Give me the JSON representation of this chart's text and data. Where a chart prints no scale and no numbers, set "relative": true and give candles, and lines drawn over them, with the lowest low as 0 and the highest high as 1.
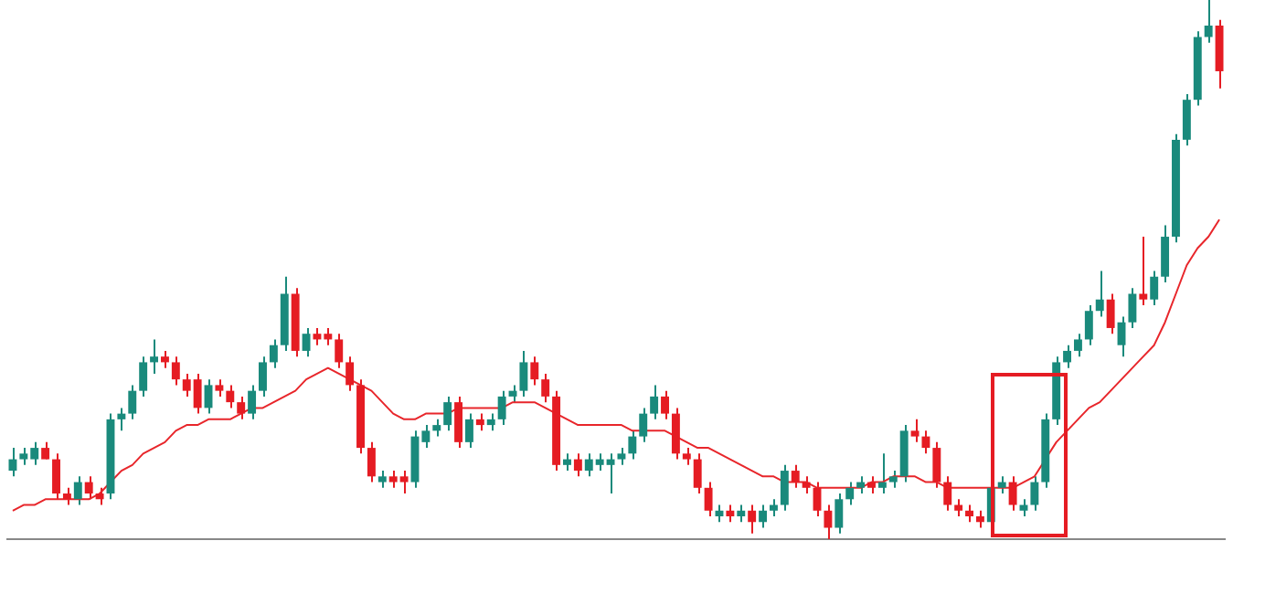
{
  "chart_data": {
    "type": "candlestick",
    "relative": true,
    "categories": [
      null,
      null,
      null,
      null,
      null,
      null,
      null,
      null,
      null,
      null,
      null,
      null,
      null,
      null,
      null,
      null,
      null,
      null,
      null,
      null,
      null,
      null,
      null,
      null,
      null,
      null,
      null,
      null,
      null,
      null,
      null,
      null,
      null,
      null,
      null,
      null,
      null,
      null,
      null,
      null,
      null,
      null,
      null,
      null,
      null,
      null,
      null,
      null,
      null,
      null,
      null,
      null,
      null,
      null,
      null,
      null,
      null,
      null,
      null,
      null,
      null,
      null,
      null,
      null,
      null,
      null,
      null,
      null,
      null,
      null,
      null,
      null,
      null,
      null,
      null,
      null,
      null,
      null,
      null,
      null,
      null,
      null,
      null,
      null,
      null,
      null,
      null,
      null,
      null,
      null,
      null,
      null,
      null,
      null,
      null,
      null,
      null,
      null,
      null,
      null,
      null,
      null,
      null,
      null,
      null,
      null,
      null,
      null,
      null,
      null,
      null,
      null
    ],
    "ohlc": [
      [
        0.12,
        0.16,
        0.11,
        0.14
      ],
      [
        0.14,
        0.16,
        0.13,
        0.15
      ],
      [
        0.14,
        0.17,
        0.13,
        0.16
      ],
      [
        0.16,
        0.17,
        0.14,
        0.14
      ],
      [
        0.14,
        0.15,
        0.07,
        0.08
      ],
      [
        0.08,
        0.09,
        0.06,
        0.07
      ],
      [
        0.07,
        0.11,
        0.06,
        0.1
      ],
      [
        0.1,
        0.11,
        0.07,
        0.08
      ],
      [
        0.08,
        0.09,
        0.06,
        0.07
      ],
      [
        0.08,
        0.22,
        0.07,
        0.21
      ],
      [
        0.21,
        0.23,
        0.19,
        0.22
      ],
      [
        0.22,
        0.27,
        0.21,
        0.26
      ],
      [
        0.26,
        0.32,
        0.25,
        0.31
      ],
      [
        0.31,
        0.35,
        0.29,
        0.32
      ],
      [
        0.32,
        0.33,
        0.3,
        0.31
      ],
      [
        0.31,
        0.32,
        0.27,
        0.28
      ],
      [
        0.28,
        0.29,
        0.25,
        0.26
      ],
      [
        0.28,
        0.29,
        0.22,
        0.23
      ],
      [
        0.23,
        0.28,
        0.22,
        0.27
      ],
      [
        0.27,
        0.28,
        0.25,
        0.26
      ],
      [
        0.26,
        0.27,
        0.23,
        0.24
      ],
      [
        0.24,
        0.25,
        0.21,
        0.22
      ],
      [
        0.22,
        0.27,
        0.21,
        0.26
      ],
      [
        0.26,
        0.32,
        0.25,
        0.31
      ],
      [
        0.31,
        0.35,
        0.3,
        0.34
      ],
      [
        0.34,
        0.46,
        0.33,
        0.43
      ],
      [
        0.43,
        0.44,
        0.32,
        0.33
      ],
      [
        0.33,
        0.37,
        0.32,
        0.36
      ],
      [
        0.36,
        0.37,
        0.34,
        0.35
      ],
      [
        0.36,
        0.37,
        0.34,
        0.35
      ],
      [
        0.35,
        0.36,
        0.3,
        0.31
      ],
      [
        0.31,
        0.32,
        0.26,
        0.27
      ],
      [
        0.27,
        0.28,
        0.15,
        0.16
      ],
      [
        0.16,
        0.17,
        0.1,
        0.11
      ],
      [
        0.1,
        0.12,
        0.09,
        0.11
      ],
      [
        0.11,
        0.12,
        0.09,
        0.1
      ],
      [
        0.11,
        0.12,
        0.08,
        0.1
      ],
      [
        0.1,
        0.19,
        0.09,
        0.18
      ],
      [
        0.17,
        0.2,
        0.16,
        0.19
      ],
      [
        0.19,
        0.21,
        0.18,
        0.2
      ],
      [
        0.2,
        0.25,
        0.19,
        0.24
      ],
      [
        0.24,
        0.25,
        0.16,
        0.17
      ],
      [
        0.17,
        0.22,
        0.16,
        0.21
      ],
      [
        0.21,
        0.22,
        0.19,
        0.2
      ],
      [
        0.2,
        0.22,
        0.19,
        0.21
      ],
      [
        0.21,
        0.26,
        0.2,
        0.25
      ],
      [
        0.25,
        0.27,
        0.24,
        0.26
      ],
      [
        0.26,
        0.33,
        0.25,
        0.31
      ],
      [
        0.31,
        0.32,
        0.27,
        0.28
      ],
      [
        0.28,
        0.29,
        0.24,
        0.25
      ],
      [
        0.25,
        0.26,
        0.12,
        0.13
      ],
      [
        0.13,
        0.15,
        0.12,
        0.14
      ],
      [
        0.14,
        0.15,
        0.11,
        0.12
      ],
      [
        0.12,
        0.15,
        0.11,
        0.14
      ],
      [
        0.13,
        0.15,
        0.12,
        0.14
      ],
      [
        0.13,
        0.15,
        0.08,
        0.14
      ],
      [
        0.14,
        0.16,
        0.13,
        0.15
      ],
      [
        0.15,
        0.19,
        0.14,
        0.18
      ],
      [
        0.18,
        0.23,
        0.17,
        0.22
      ],
      [
        0.22,
        0.27,
        0.21,
        0.25
      ],
      [
        0.25,
        0.26,
        0.21,
        0.22
      ],
      [
        0.22,
        0.23,
        0.14,
        0.15
      ],
      [
        0.15,
        0.16,
        0.13,
        0.14
      ],
      [
        0.14,
        0.15,
        0.08,
        0.09
      ],
      [
        0.09,
        0.1,
        0.04,
        0.05
      ],
      [
        0.04,
        0.06,
        0.03,
        0.05
      ],
      [
        0.05,
        0.06,
        0.03,
        0.04
      ],
      [
        0.04,
        0.06,
        0.03,
        0.05
      ],
      [
        0.05,
        0.06,
        0.01,
        0.03
      ],
      [
        0.03,
        0.06,
        0.02,
        0.05
      ],
      [
        0.05,
        0.07,
        0.04,
        0.06
      ],
      [
        0.06,
        0.13,
        0.05,
        0.12
      ],
      [
        0.12,
        0.13,
        0.09,
        0.1
      ],
      [
        0.1,
        0.11,
        0.08,
        0.09
      ],
      [
        0.09,
        0.1,
        0.04,
        0.05
      ],
      [
        0.05,
        0.06,
        0,
        0.02
      ],
      [
        0.02,
        0.08,
        0.01,
        0.07
      ],
      [
        0.07,
        0.1,
        0.06,
        0.09
      ],
      [
        0.09,
        0.11,
        0.08,
        0.1
      ],
      [
        0.1,
        0.11,
        0.08,
        0.09
      ],
      [
        0.09,
        0.15,
        0.08,
        0.1
      ],
      [
        0.1,
        0.12,
        0.09,
        0.11
      ],
      [
        0.11,
        0.2,
        0.1,
        0.19
      ],
      [
        0.19,
        0.21,
        0.17,
        0.18
      ],
      [
        0.18,
        0.19,
        0.15,
        0.16
      ],
      [
        0.16,
        0.17,
        0.09,
        0.1
      ],
      [
        0.1,
        0.11,
        0.05,
        0.06
      ],
      [
        0.06,
        0.07,
        0.04,
        0.05
      ],
      [
        0.05,
        0.06,
        0.03,
        0.04
      ],
      [
        0.04,
        0.05,
        0.02,
        0.03
      ],
      [
        0.03,
        0.1,
        0.02,
        0.09
      ],
      [
        0.09,
        0.11,
        0.08,
        0.1
      ],
      [
        0.1,
        0.11,
        0.05,
        0.06
      ],
      [
        0.05,
        0.07,
        0.04,
        0.06
      ],
      [
        0.06,
        0.11,
        0.05,
        0.1
      ],
      [
        0.1,
        0.22,
        0.09,
        0.21
      ],
      [
        0.21,
        0.32,
        0.2,
        0.31
      ],
      [
        0.31,
        0.34,
        0.3,
        0.33
      ],
      [
        0.33,
        0.36,
        0.32,
        0.35
      ],
      [
        0.35,
        0.41,
        0.34,
        0.4
      ],
      [
        0.4,
        0.47,
        0.39,
        0.42
      ],
      [
        0.42,
        0.43,
        0.36,
        0.37
      ],
      [
        0.34,
        0.39,
        0.32,
        0.38
      ],
      [
        0.38,
        0.44,
        0.37,
        0.43
      ],
      [
        0.43,
        0.53,
        0.41,
        0.42
      ],
      [
        0.42,
        0.47,
        0.41,
        0.46
      ],
      [
        0.46,
        0.55,
        0.45,
        0.53
      ],
      [
        0.53,
        0.71,
        0.52,
        0.7
      ],
      [
        0.7,
        0.78,
        0.69,
        0.77
      ],
      [
        0.77,
        0.89,
        0.76,
        0.88
      ],
      [
        0.88,
        1,
        0.87,
        0.9
      ],
      [
        0.9,
        0.91,
        0.79,
        0.82
      ]
    ],
    "colors": [
      "#1a8a7c",
      "#1a8a7c",
      "#1a8a7c",
      "#e51c23",
      "#e51c23",
      "#e51c23",
      "#1a8a7c",
      "#e51c23",
      "#e51c23",
      "#1a8a7c",
      "#1a8a7c",
      "#1a8a7c",
      "#1a8a7c",
      "#1a8a7c",
      "#e51c23",
      "#e51c23",
      "#e51c23",
      "#e51c23",
      "#1a8a7c",
      "#e51c23",
      "#e51c23",
      "#e51c23",
      "#1a8a7c",
      "#1a8a7c",
      "#1a8a7c",
      "#1a8a7c",
      "#e51c23",
      "#1a8a7c",
      "#e51c23",
      "#e51c23",
      "#e51c23",
      "#e51c23",
      "#e51c23",
      "#e51c23",
      "#1a8a7c",
      "#e51c23",
      "#e51c23",
      "#1a8a7c",
      "#1a8a7c",
      "#1a8a7c",
      "#1a8a7c",
      "#e51c23",
      "#1a8a7c",
      "#e51c23",
      "#1a8a7c",
      "#1a8a7c",
      "#1a8a7c",
      "#1a8a7c",
      "#e51c23",
      "#e51c23",
      "#e51c23",
      "#1a8a7c",
      "#e51c23",
      "#1a8a7c",
      "#1a8a7c",
      "#1a8a7c",
      "#1a8a7c",
      "#1a8a7c",
      "#1a8a7c",
      "#1a8a7c",
      "#e51c23",
      "#e51c23",
      "#e51c23",
      "#e51c23",
      "#e51c23",
      "#1a8a7c",
      "#e51c23",
      "#1a8a7c",
      "#e51c23",
      "#1a8a7c",
      "#1a8a7c",
      "#1a8a7c",
      "#e51c23",
      "#e51c23",
      "#e51c23",
      "#e51c23",
      "#1a8a7c",
      "#1a8a7c",
      "#1a8a7c",
      "#e51c23",
      "#1a8a7c",
      "#1a8a7c",
      "#1a8a7c",
      "#e51c23",
      "#e51c23",
      "#e51c23",
      "#e51c23",
      "#e51c23",
      "#e51c23",
      "#e51c23",
      "#1a8a7c",
      "#1a8a7c",
      "#e51c23",
      "#1a8a7c",
      "#1a8a7c",
      "#1a8a7c",
      "#1a8a7c",
      "#1a8a7c",
      "#1a8a7c",
      "#1a8a7c",
      "#1a8a7c",
      "#e51c23",
      "#1a8a7c",
      "#1a8a7c",
      "#e51c23",
      "#1a8a7c",
      "#1a8a7c",
      "#1a8a7c",
      "#1a8a7c",
      "#1a8a7c",
      "#1a8a7c",
      "#e51c23"
    ],
    "series": [
      {
        "type": "line",
        "color": "#e8262b",
        "values": [
          0.05,
          0.06,
          0.06,
          0.07,
          0.07,
          0.07,
          0.07,
          0.07,
          0.08,
          0.1,
          0.12,
          0.13,
          0.15,
          0.16,
          0.17,
          0.19,
          0.2,
          0.2,
          0.21,
          0.21,
          0.21,
          0.22,
          0.23,
          0.23,
          0.24,
          0.25,
          0.26,
          0.28,
          0.29,
          0.3,
          0.29,
          0.28,
          0.27,
          0.26,
          0.24,
          0.22,
          0.21,
          0.21,
          0.22,
          0.22,
          0.22,
          0.23,
          0.23,
          0.23,
          0.23,
          0.23,
          0.24,
          0.24,
          0.24,
          0.23,
          0.22,
          0.21,
          0.2,
          0.2,
          0.2,
          0.2,
          0.2,
          0.19,
          0.19,
          0.19,
          0.19,
          0.18,
          0.17,
          0.16,
          0.16,
          0.15,
          0.14,
          0.13,
          0.12,
          0.11,
          0.11,
          0.1,
          0.1,
          0.1,
          0.09,
          0.09,
          0.09,
          0.09,
          0.09,
          0.1,
          0.1,
          0.11,
          0.11,
          0.11,
          0.1,
          0.1,
          0.09,
          0.09,
          0.09,
          0.09,
          0.09,
          0.09,
          0.09,
          0.1,
          0.11,
          0.14,
          0.17,
          0.19,
          0.21,
          0.23,
          0.24,
          0.26,
          0.28,
          0.3,
          0.32,
          0.34,
          0.38,
          0.43,
          0.48,
          0.51,
          0.53,
          0.56
        ]
      }
    ]
  }
}
